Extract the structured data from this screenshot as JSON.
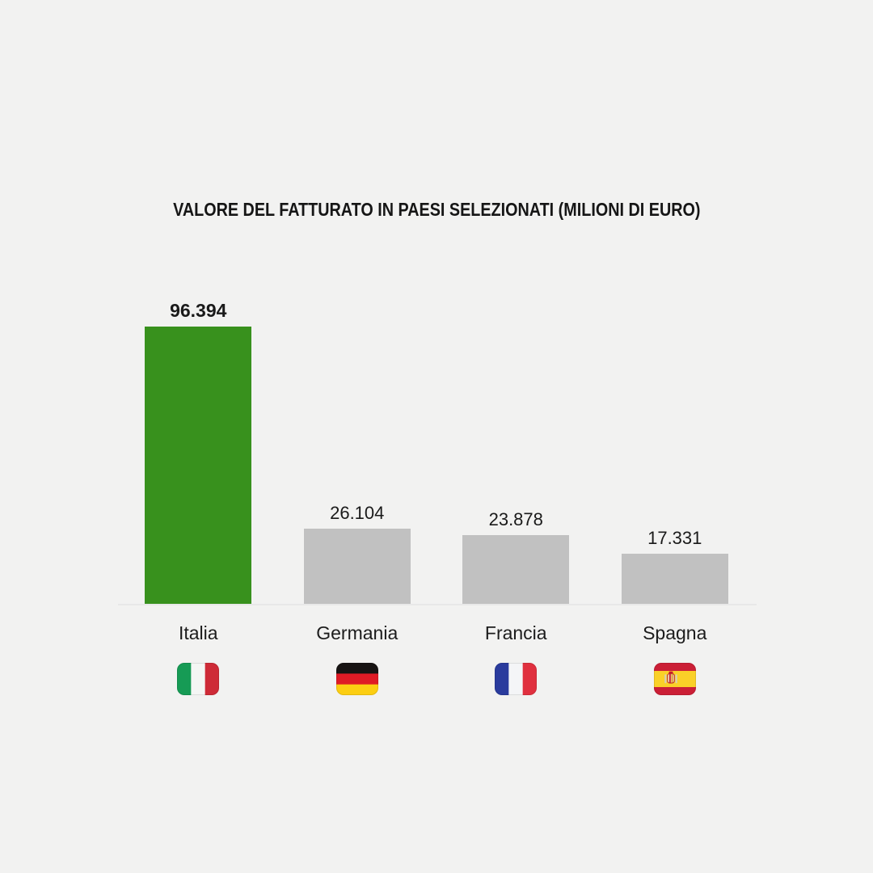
{
  "colors": {
    "background": "#f2f2f1",
    "axis_line": "#e8e8e8",
    "text": "#1a1a1a",
    "highlight_bar": "#38911d",
    "default_bar": "#c1c1c1"
  },
  "chart_data": {
    "type": "bar",
    "title": "VALORE DEL FATTURATO IN PAESI SELEZIONATI (MILIONI DI EURO)",
    "categories": [
      "Italia",
      "Germania",
      "Francia",
      "Spagna"
    ],
    "values": [
      96394,
      26104,
      23878,
      17331
    ],
    "value_labels": [
      "96.394",
      "26.104",
      "23.878",
      "17.331"
    ],
    "ylabel": "",
    "xlabel": "",
    "ylim": [
      0,
      96394
    ],
    "grid": false,
    "legend": "none",
    "highlighted_index": 0,
    "bar_colors": [
      "#38911d",
      "#c1c1c1",
      "#c1c1c1",
      "#c1c1c1"
    ]
  },
  "flags": [
    {
      "country": "Italia",
      "slug": "italy",
      "orientation": "vertical",
      "stripes": [
        {
          "color": "#169b55",
          "weight": 1
        },
        {
          "color": "#f4f6f4",
          "weight": 1
        },
        {
          "color": "#ce2b37",
          "weight": 1
        }
      ],
      "emblem": false
    },
    {
      "country": "Germania",
      "slug": "germany",
      "orientation": "horizontal",
      "stripes": [
        {
          "color": "#171413",
          "weight": 1
        },
        {
          "color": "#df1b25",
          "weight": 1
        },
        {
          "color": "#fcce12",
          "weight": 1
        }
      ],
      "emblem": false
    },
    {
      "country": "Francia",
      "slug": "france",
      "orientation": "vertical",
      "stripes": [
        {
          "color": "#2a3b9d",
          "weight": 1
        },
        {
          "color": "#f4f5f7",
          "weight": 1
        },
        {
          "color": "#e0303f",
          "weight": 1
        }
      ],
      "emblem": false
    },
    {
      "country": "Spagna",
      "slug": "spain",
      "orientation": "horizontal",
      "stripes": [
        {
          "color": "#cb1f36",
          "weight": 1
        },
        {
          "color": "#fad028",
          "weight": 2
        },
        {
          "color": "#cb1f36",
          "weight": 1
        }
      ],
      "emblem": true
    }
  ]
}
